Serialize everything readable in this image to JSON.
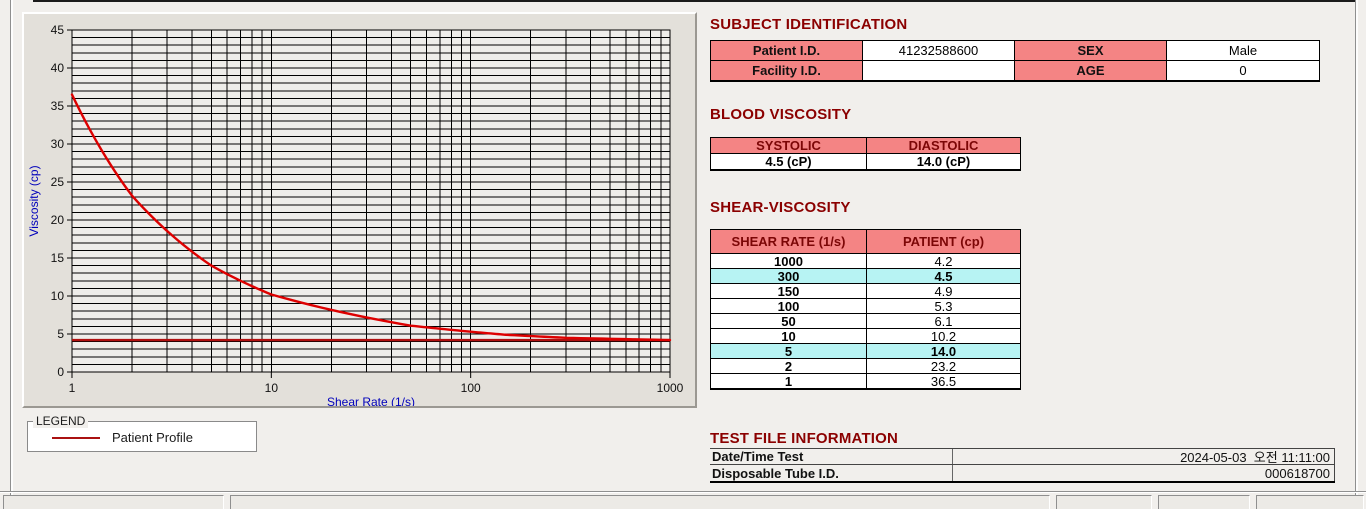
{
  "colors": {
    "section_title": "#8b0000",
    "table_header_pink": "#f48484",
    "row_highlight_cyan": "#b7f3f3",
    "axis_label_blue": "#0000bb",
    "curve_red": "#dd0000",
    "reference_red": "#b01010",
    "grid_black": "#000000",
    "plot_bg": "#efedea"
  },
  "chart_data": {
    "type": "line",
    "title": "",
    "xlabel": "Shear Rate (1/s)",
    "ylabel": "Viscosity (cp)",
    "x_scale": "log",
    "xlim": [
      1,
      1000
    ],
    "ylim": [
      0,
      45
    ],
    "x_major_ticks": [
      1,
      10,
      100,
      1000
    ],
    "y_major_ticks": [
      0,
      5,
      10,
      15,
      20,
      25,
      30,
      35,
      40,
      45
    ],
    "y_minor_step": 1,
    "grid": "on",
    "series": [
      {
        "name": "Patient Profile",
        "color": "#dd0000",
        "x": [
          1,
          2,
          5,
          10,
          50,
          100,
          150,
          300,
          1000
        ],
        "y": [
          36.5,
          23.2,
          14.0,
          10.2,
          6.1,
          5.3,
          4.9,
          4.5,
          4.2
        ]
      }
    ],
    "reference_line": {
      "value": 4.2,
      "color": "#b01010"
    },
    "legend": {
      "title": "LEGEND",
      "position": "below-left",
      "entries": [
        {
          "label": "Patient Profile",
          "color": "#aa1111"
        }
      ]
    }
  },
  "subject_identification": {
    "title": "SUBJECT IDENTIFICATION",
    "rows": [
      {
        "label": "Patient I.D.",
        "value": "41232588600",
        "label2": "SEX",
        "value2": "Male"
      },
      {
        "label": "Facility I.D.",
        "value": "",
        "label2": "AGE",
        "value2": "0"
      }
    ]
  },
  "blood_viscosity": {
    "title": "BLOOD VISCOSITY",
    "headers": [
      "SYSTOLIC",
      "DIASTOLIC"
    ],
    "values": [
      "4.5 (cP)",
      "14.0 (cP)"
    ]
  },
  "shear_viscosity": {
    "title": "SHEAR-VISCOSITY",
    "headers": [
      "SHEAR RATE (1/s)",
      "PATIENT (cp)"
    ],
    "rows": [
      {
        "rate": "1000",
        "patient": "4.2",
        "highlight": false
      },
      {
        "rate": "300",
        "patient": "4.5",
        "highlight": true
      },
      {
        "rate": "150",
        "patient": "4.9",
        "highlight": false
      },
      {
        "rate": "100",
        "patient": "5.3",
        "highlight": false
      },
      {
        "rate": "50",
        "patient": "6.1",
        "highlight": false
      },
      {
        "rate": "10",
        "patient": "10.2",
        "highlight": false
      },
      {
        "rate": "5",
        "patient": "14.0",
        "highlight": true
      },
      {
        "rate": "2",
        "patient": "23.2",
        "highlight": false
      },
      {
        "rate": "1",
        "patient": "36.5",
        "highlight": false
      }
    ]
  },
  "test_file_information": {
    "title": "TEST FILE INFORMATION",
    "rows": [
      {
        "label": "Date/Time Test",
        "value": "2024-05-03  오전 11:11:00"
      },
      {
        "label": "Disposable Tube I.D.",
        "value": "000618700"
      }
    ]
  }
}
